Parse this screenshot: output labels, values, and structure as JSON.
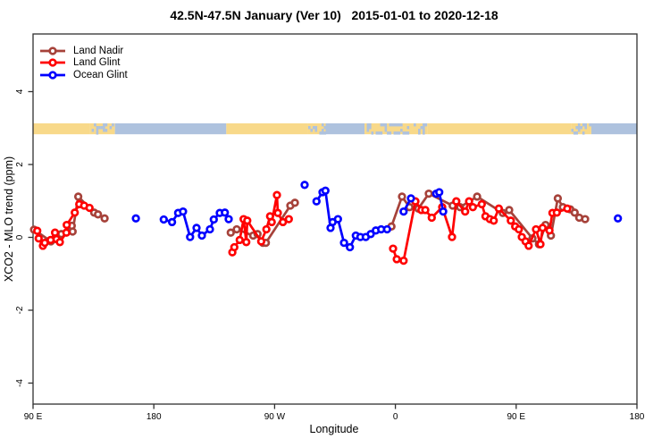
{
  "title": "42.5N-47.5N January (Ver 10)   2015-01-01 to 2020-12-18",
  "axes": {
    "x_label": "Longitude",
    "y_label": "XCO2 - MLO trend (ppm)"
  },
  "legend": {
    "items": [
      {
        "label": "Land Nadir",
        "color": "#A6423A"
      },
      {
        "label": "Land Glint",
        "color": "#FF0000"
      },
      {
        "label": "Ocean Glint",
        "color": "#0000FF"
      }
    ]
  },
  "colors": {
    "land_strip": "#F8D98A",
    "ocean_strip": "#AEC2DE",
    "box": "#303030",
    "marker_fill": "#FFFFFF"
  },
  "chart_data": {
    "type": "line",
    "title": "42.5N-47.5N January (Ver 10)   2015-01-01 to 2020-12-18",
    "xlabel": "Longitude",
    "ylabel": "XCO2 - MLO trend (ppm)",
    "x_axis_note": "x axis spans 450 degrees of longitude starting at 90E and wrapping eastward: 90E -> 180 -> 90W -> 0 -> 90E -> 180; positions below are degrees east of the left edge (90E)",
    "xlim_deg": [
      0,
      450
    ],
    "ylim": [
      -4.6,
      5.6
    ],
    "grid": false,
    "legend_position": "top-left inside",
    "x_ticks": [
      {
        "pos": 0,
        "label": "90 E"
      },
      {
        "pos": 90,
        "label": "180"
      },
      {
        "pos": 180,
        "label": "90 W"
      },
      {
        "pos": 270,
        "label": "0"
      },
      {
        "pos": 360,
        "label": "90 E"
      },
      {
        "pos": 450,
        "label": "180"
      }
    ],
    "y_ticks": [
      {
        "value": -4,
        "label": "-4"
      },
      {
        "value": -2,
        "label": "-2"
      },
      {
        "value": 0,
        "label": "0"
      },
      {
        "value": 2,
        "label": "2"
      },
      {
        "value": 4,
        "label": "4"
      }
    ],
    "map_band": {
      "description": "land/ocean map strip drawn across the plot at about 3 ppm",
      "y_ppm": [
        2.83,
        3.13
      ],
      "segments": [
        {
          "from": 0,
          "to": 42,
          "surface": "land"
        },
        {
          "from": 42,
          "to": 61,
          "surface": "mixed"
        },
        {
          "from": 61,
          "to": 144,
          "surface": "ocean"
        },
        {
          "from": 144,
          "to": 205,
          "surface": "land"
        },
        {
          "from": 205,
          "to": 218,
          "surface": "mixed"
        },
        {
          "from": 218,
          "to": 247,
          "surface": "ocean"
        },
        {
          "from": 247,
          "to": 294,
          "surface": "mixed"
        },
        {
          "from": 294,
          "to": 401,
          "surface": "land"
        },
        {
          "from": 401,
          "to": 416,
          "surface": "mixed"
        },
        {
          "from": 416,
          "to": 450,
          "surface": "ocean"
        }
      ]
    },
    "series": [
      {
        "name": "Land Nadir",
        "color": "#A6423A",
        "segments": [
          [
            [
              0.7,
              0.21
            ],
            [
              13.3,
              -0.11
            ],
            [
              17.3,
              0.04
            ],
            [
              21.1,
              0.09
            ],
            [
              28.8,
              0.32
            ],
            [
              29.5,
              0.16
            ],
            [
              33.7,
              1.12
            ],
            [
              45.5,
              0.68
            ],
            [
              48.4,
              0.63
            ],
            [
              53.3,
              0.52
            ]
          ],
          [
            [
              147.3,
              0.13
            ],
            [
              151.8,
              0.22
            ],
            [
              164.0,
              0.05
            ],
            [
              167.3,
              0.09
            ],
            [
              171.3,
              -0.15
            ],
            [
              173.5,
              -0.15
            ],
            [
              191.7,
              0.87
            ],
            [
              195.1,
              0.95
            ]
          ],
          [
            [
              267.1,
              0.3
            ],
            [
              274.9,
              1.12
            ],
            [
              280.5,
              0.83
            ],
            [
              287.1,
              0.79
            ],
            [
              294.9,
              1.2
            ],
            [
              312.7,
              0.87
            ],
            [
              318.2,
              0.83
            ],
            [
              330.9,
              1.12
            ],
            [
              350.0,
              0.67
            ],
            [
              354.8,
              0.75
            ],
            [
              372.1,
              -0.03
            ],
            [
              377.0,
              -0.19
            ],
            [
              381.9,
              0.34
            ],
            [
              385.9,
              0.05
            ],
            [
              391.0,
              1.07
            ],
            [
              394.8,
              0.83
            ],
            [
              400.3,
              0.77
            ],
            [
              403.6,
              0.68
            ],
            [
              407.0,
              0.54
            ],
            [
              411.4,
              0.5
            ]
          ]
        ]
      },
      {
        "name": "Land Glint",
        "color": "#FF0000",
        "segments": [
          [
            [
              3.1,
              0.18
            ],
            [
              4.2,
              -0.03
            ],
            [
              7.3,
              -0.23
            ],
            [
              8.7,
              -0.15
            ],
            [
              13.1,
              -0.07
            ],
            [
              16.4,
              0.13
            ],
            [
              17.5,
              -0.05
            ],
            [
              20.0,
              -0.13
            ],
            [
              24.8,
              0.13
            ],
            [
              25.1,
              0.34
            ],
            [
              31.1,
              0.68
            ],
            [
              34.4,
              0.91
            ],
            [
              38.1,
              0.87
            ],
            [
              42.1,
              0.81
            ]
          ],
          [
            [
              148.5,
              -0.41
            ],
            [
              150.0,
              -0.27
            ],
            [
              154.0,
              -0.07
            ],
            [
              156.9,
              0.5
            ],
            [
              158.9,
              -0.13
            ],
            [
              159.6,
              0.46
            ],
            [
              170.0,
              -0.11
            ],
            [
              173.9,
              0.22
            ],
            [
              176.6,
              0.58
            ],
            [
              177.9,
              0.42
            ],
            [
              181.7,
              1.16
            ],
            [
              182.4,
              0.67
            ],
            [
              186.2,
              0.42
            ],
            [
              190.6,
              0.5
            ]
          ],
          [
            [
              268.3,
              -0.31
            ],
            [
              271.0,
              -0.6
            ],
            [
              276.1,
              -0.64
            ],
            [
              284.9,
              0.99
            ],
            [
              289.4,
              0.75
            ],
            [
              292.3,
              0.75
            ],
            [
              297.1,
              0.54
            ],
            [
              304.9,
              0.83
            ],
            [
              312.2,
              0.01
            ],
            [
              315.4,
              0.99
            ],
            [
              322.0,
              0.71
            ],
            [
              324.9,
              0.99
            ],
            [
              327.7,
              0.83
            ],
            [
              334.4,
              0.91
            ],
            [
              337.1,
              0.58
            ],
            [
              340.4,
              0.5
            ],
            [
              343.3,
              0.46
            ],
            [
              347.1,
              0.79
            ],
            [
              356.0,
              0.46
            ],
            [
              359.3,
              0.3
            ],
            [
              362.0,
              0.22
            ],
            [
              364.2,
              0.01
            ],
            [
              367.0,
              -0.11
            ],
            [
              369.3,
              -0.23
            ],
            [
              374.8,
              0.22
            ],
            [
              378.1,
              -0.19
            ],
            [
              379.7,
              0.26
            ],
            [
              384.8,
              0.19
            ],
            [
              387.0,
              0.67
            ],
            [
              390.3,
              0.68
            ],
            [
              398.1,
              0.79
            ]
          ]
        ]
      },
      {
        "name": "Ocean Glint",
        "color": "#0000FF",
        "segments": [
          [
            [
              76.6,
              0.52
            ]
          ],
          [
            [
              97.4,
              0.49
            ],
            [
              103.6,
              0.42
            ],
            [
              108.1,
              0.67
            ],
            [
              111.8,
              0.71
            ],
            [
              117.0,
              0.01
            ],
            [
              121.8,
              0.26
            ],
            [
              125.8,
              0.05
            ],
            [
              131.8,
              0.22
            ],
            [
              134.7,
              0.49
            ],
            [
              139.1,
              0.67
            ],
            [
              142.9,
              0.68
            ],
            [
              145.8,
              0.5
            ]
          ],
          [
            [
              202.4,
              1.44
            ]
          ],
          [
            [
              211.2,
              0.99
            ],
            [
              215.7,
              1.24
            ],
            [
              217.9,
              1.28
            ],
            [
              221.7,
              0.26
            ],
            [
              223.2,
              0.42
            ],
            [
              227.2,
              0.5
            ],
            [
              231.7,
              -0.15
            ],
            [
              236.1,
              -0.27
            ],
            [
              240.5,
              0.05
            ],
            [
              243.9,
              0.01
            ],
            [
              247.9,
              0.01
            ],
            [
              251.6,
              0.09
            ],
            [
              255.4,
              0.19
            ],
            [
              259.4,
              0.22
            ],
            [
              263.8,
              0.22
            ]
          ],
          [
            [
              276.1,
              0.71
            ],
            [
              281.6,
              1.07
            ]
          ],
          [
            [
              300.4,
              1.2
            ],
            [
              302.7,
              1.24
            ],
            [
              305.6,
              0.71
            ]
          ],
          [
            [
              435.8,
              0.52
            ]
          ]
        ]
      }
    ]
  }
}
